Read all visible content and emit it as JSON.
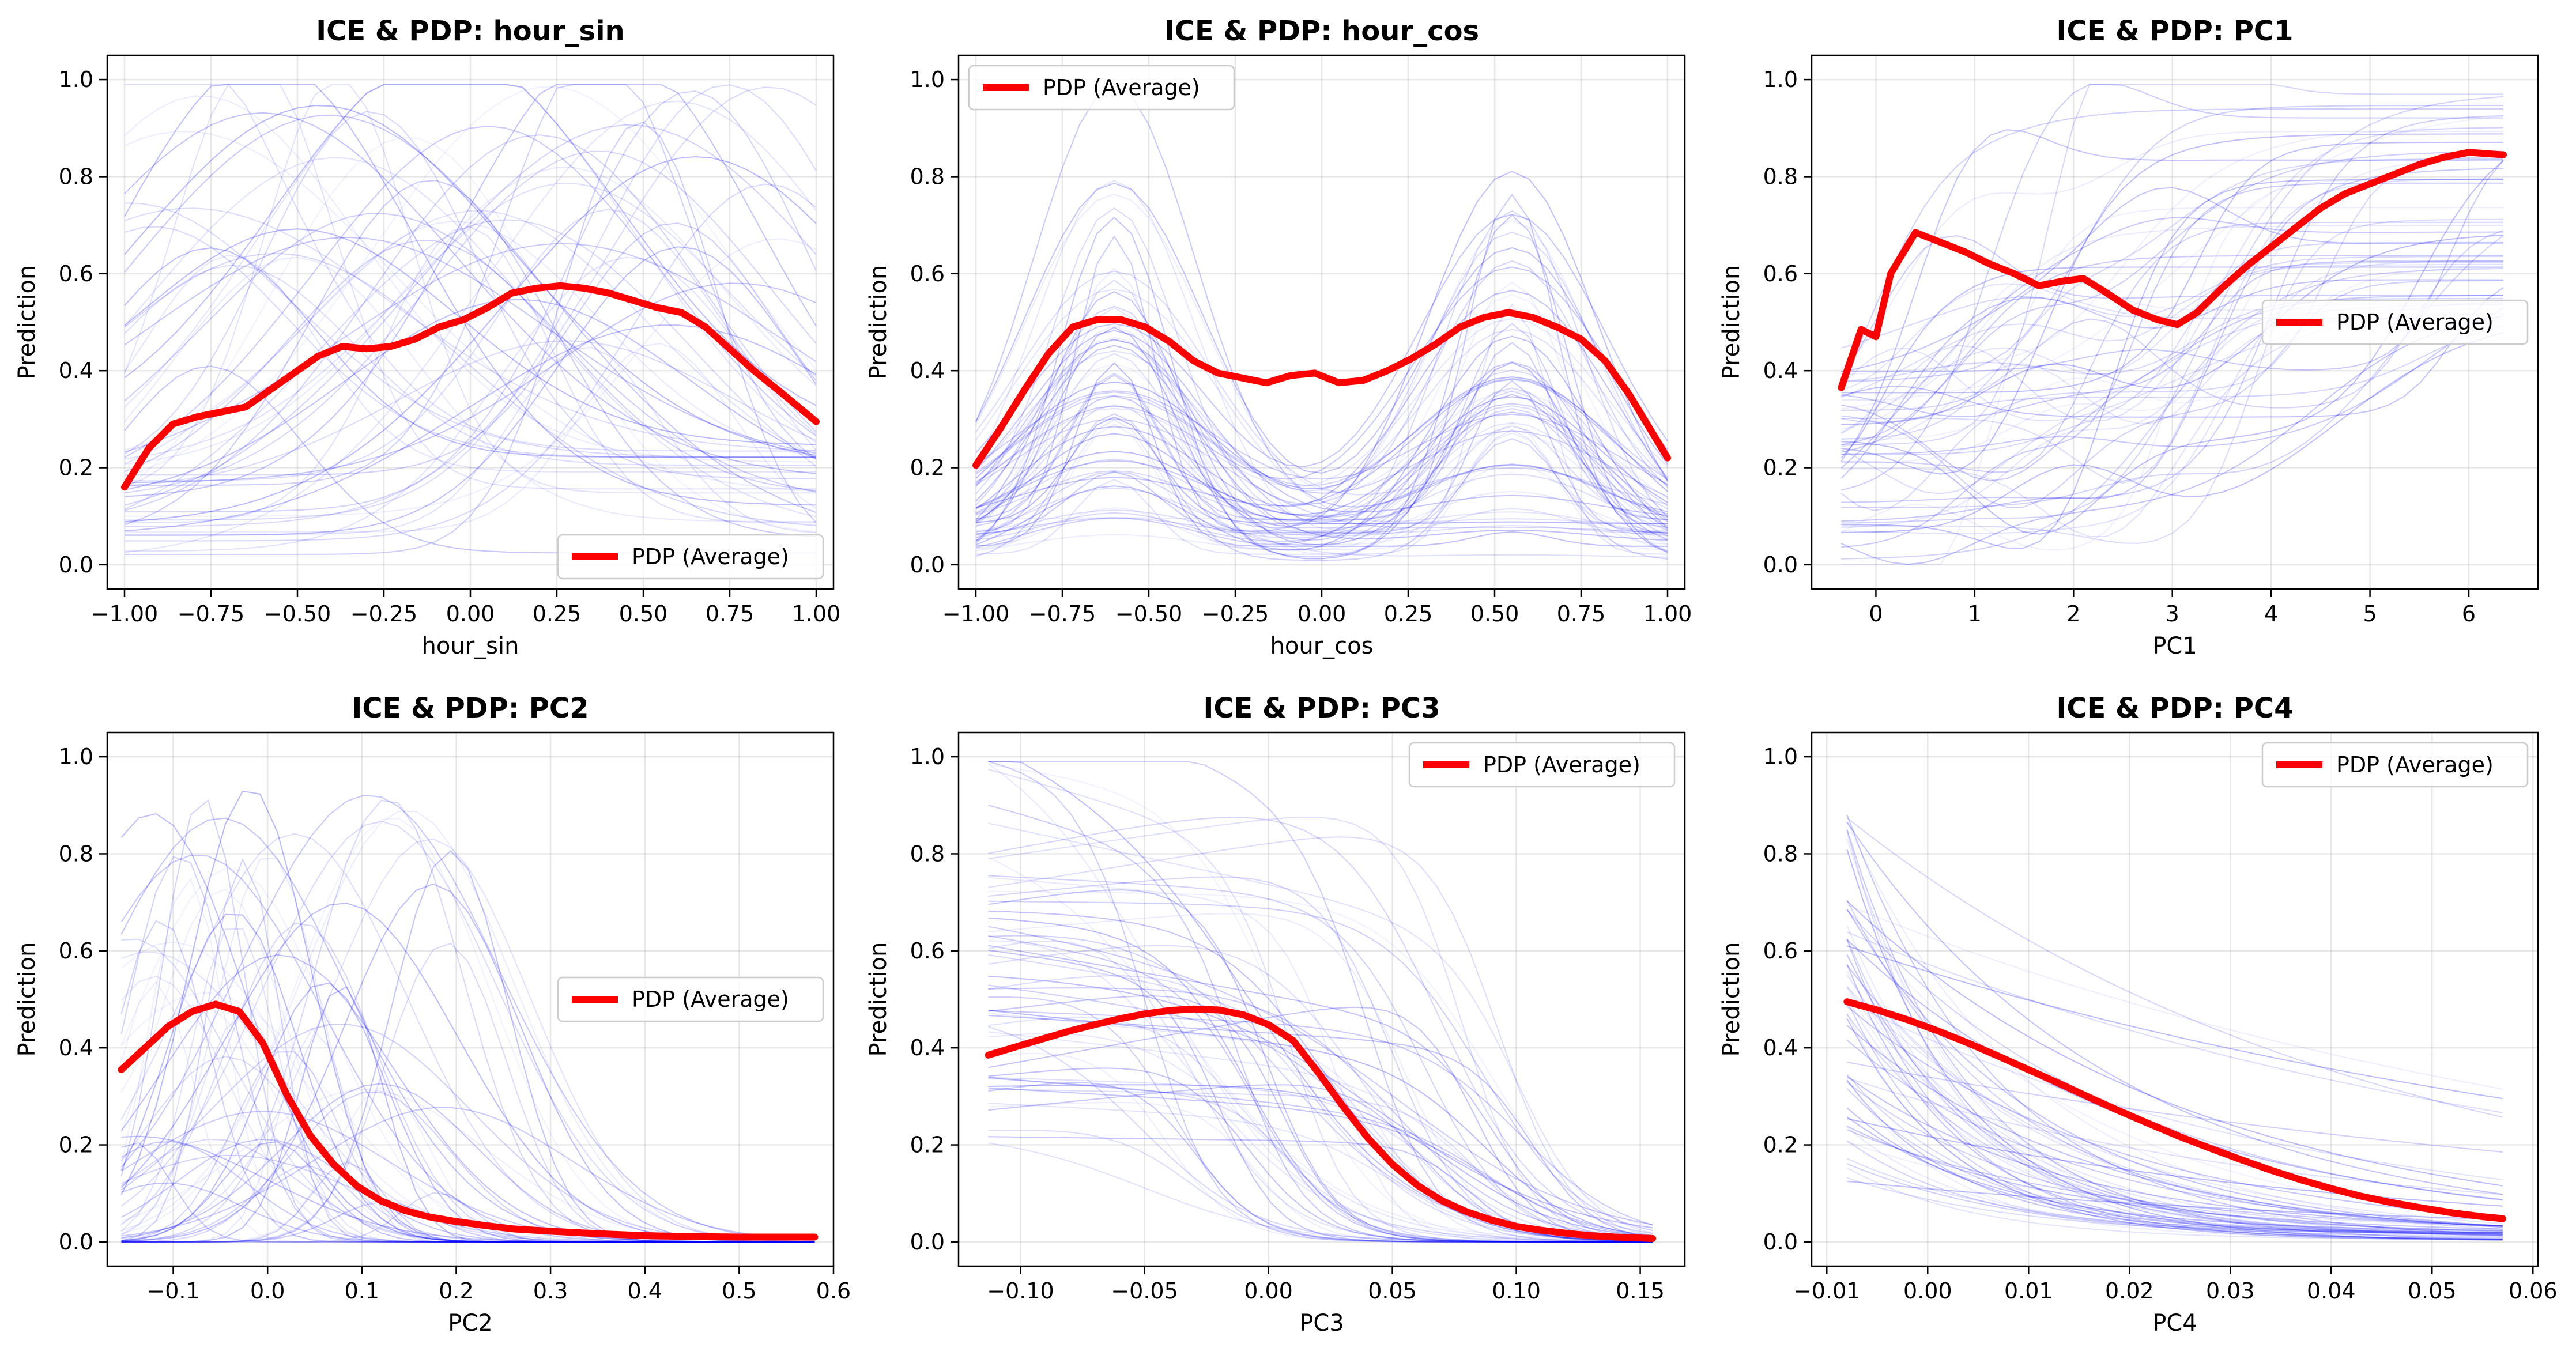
{
  "chart_data": [
    {
      "type": "line",
      "title": "ICE & PDP: hour_sin",
      "xlabel": "hour_sin",
      "ylabel": "Prediction",
      "xlim": [
        -1.05,
        1.05
      ],
      "ylim": [
        -0.05,
        1.05
      ],
      "xticks": [
        -1.0,
        -0.75,
        -0.5,
        -0.25,
        0.0,
        0.25,
        0.5,
        0.75,
        1.0
      ],
      "xtick_labels": [
        "−1.00",
        "−0.75",
        "−0.50",
        "−0.25",
        "0.00",
        "0.25",
        "0.50",
        "0.75",
        "1.00"
      ],
      "yticks": [
        0.0,
        0.2,
        0.4,
        0.6,
        0.8,
        1.0
      ],
      "ytick_labels": [
        "0.0",
        "0.2",
        "0.4",
        "0.6",
        "0.8",
        "1.0"
      ],
      "grid": true,
      "legend": {
        "label": "PDP (Average)",
        "position": "lower-right"
      },
      "ice_style": {
        "shape": "bump",
        "ice_count": 60,
        "ice_color": "#0000ff"
      },
      "pdp_color": "#ff0000",
      "series": [
        {
          "name": "PDP (Average)",
          "x": [
            -1.0,
            -0.93,
            -0.86,
            -0.79,
            -0.72,
            -0.65,
            -0.58,
            -0.51,
            -0.44,
            -0.37,
            -0.3,
            -0.23,
            -0.16,
            -0.09,
            -0.02,
            0.05,
            0.12,
            0.19,
            0.26,
            0.33,
            0.4,
            0.47,
            0.54,
            0.61,
            0.68,
            0.75,
            0.82,
            0.89,
            1.0
          ],
          "y": [
            0.16,
            0.24,
            0.29,
            0.305,
            0.315,
            0.325,
            0.36,
            0.395,
            0.43,
            0.45,
            0.445,
            0.45,
            0.465,
            0.49,
            0.505,
            0.53,
            0.56,
            0.57,
            0.575,
            0.57,
            0.56,
            0.545,
            0.53,
            0.52,
            0.49,
            0.445,
            0.4,
            0.36,
            0.295
          ]
        }
      ]
    },
    {
      "type": "line",
      "title": "ICE & PDP: hour_cos",
      "xlabel": "hour_cos",
      "ylabel": "Prediction",
      "xlim": [
        -1.05,
        1.05
      ],
      "ylim": [
        -0.05,
        1.05
      ],
      "xticks": [
        -1.0,
        -0.75,
        -0.5,
        -0.25,
        0.0,
        0.25,
        0.5,
        0.75,
        1.0
      ],
      "xtick_labels": [
        "−1.00",
        "−0.75",
        "−0.50",
        "−0.25",
        "0.00",
        "0.25",
        "0.50",
        "0.75",
        "1.00"
      ],
      "yticks": [
        0.0,
        0.2,
        0.4,
        0.6,
        0.8,
        1.0
      ],
      "ytick_labels": [
        "0.0",
        "0.2",
        "0.4",
        "0.6",
        "0.8",
        "1.0"
      ],
      "grid": true,
      "legend": {
        "label": "PDP (Average)",
        "position": "upper-left"
      },
      "ice_style": {
        "shape": "double",
        "ice_count": 60,
        "ice_color": "#0000ff"
      },
      "pdp_color": "#ff0000",
      "series": [
        {
          "name": "PDP (Average)",
          "x": [
            -1.0,
            -0.93,
            -0.86,
            -0.79,
            -0.72,
            -0.65,
            -0.58,
            -0.51,
            -0.44,
            -0.37,
            -0.3,
            -0.23,
            -0.16,
            -0.09,
            -0.02,
            0.05,
            0.12,
            0.19,
            0.26,
            0.33,
            0.4,
            0.47,
            0.54,
            0.61,
            0.68,
            0.75,
            0.82,
            0.89,
            1.0
          ],
          "y": [
            0.205,
            0.28,
            0.36,
            0.435,
            0.49,
            0.505,
            0.505,
            0.49,
            0.46,
            0.42,
            0.395,
            0.385,
            0.375,
            0.39,
            0.395,
            0.375,
            0.38,
            0.4,
            0.425,
            0.455,
            0.49,
            0.51,
            0.52,
            0.51,
            0.49,
            0.465,
            0.42,
            0.35,
            0.22
          ]
        }
      ]
    },
    {
      "type": "line",
      "title": "ICE & PDP: PC1",
      "xlabel": "PC1",
      "ylabel": "Prediction",
      "xlim": [
        -0.65,
        6.7
      ],
      "ylim": [
        -0.05,
        1.05
      ],
      "xticks": [
        0,
        1,
        2,
        3,
        4,
        5,
        6
      ],
      "xtick_labels": [
        "0",
        "1",
        "2",
        "3",
        "4",
        "5",
        "6"
      ],
      "yticks": [
        0.0,
        0.2,
        0.4,
        0.6,
        0.8,
        1.0
      ],
      "ytick_labels": [
        "0.0",
        "0.2",
        "0.4",
        "0.6",
        "0.8",
        "1.0"
      ],
      "grid": true,
      "legend": {
        "label": "PDP (Average)",
        "position": "center-right"
      },
      "ice_style": {
        "shape": "pc1",
        "ice_count": 60,
        "ice_color": "#0000ff"
      },
      "pdp_color": "#ff0000",
      "series": [
        {
          "name": "PDP (Average)",
          "x": [
            -0.35,
            -0.15,
            0.0,
            0.15,
            0.4,
            0.65,
            0.9,
            1.15,
            1.4,
            1.65,
            1.9,
            2.1,
            2.3,
            2.6,
            2.85,
            3.05,
            3.25,
            3.5,
            3.75,
            4.0,
            4.25,
            4.5,
            4.75,
            5.0,
            5.25,
            5.5,
            5.75,
            6.0,
            6.35
          ],
          "y": [
            0.365,
            0.485,
            0.47,
            0.6,
            0.685,
            0.665,
            0.645,
            0.62,
            0.6,
            0.575,
            0.585,
            0.59,
            0.565,
            0.525,
            0.505,
            0.495,
            0.52,
            0.57,
            0.615,
            0.655,
            0.695,
            0.735,
            0.765,
            0.785,
            0.805,
            0.825,
            0.84,
            0.85,
            0.845
          ]
        }
      ]
    },
    {
      "type": "line",
      "title": "ICE & PDP: PC2",
      "xlabel": "PC2",
      "ylabel": "Prediction",
      "xlim": [
        -0.17,
        0.6
      ],
      "ylim": [
        -0.05,
        1.05
      ],
      "xticks": [
        -0.1,
        0.0,
        0.1,
        0.2,
        0.3,
        0.4,
        0.5,
        0.6
      ],
      "xtick_labels": [
        "−0.1",
        "0.0",
        "0.1",
        "0.2",
        "0.3",
        "0.4",
        "0.5",
        "0.6"
      ],
      "yticks": [
        0.0,
        0.2,
        0.4,
        0.6,
        0.8,
        1.0
      ],
      "ytick_labels": [
        "0.0",
        "0.2",
        "0.4",
        "0.6",
        "0.8",
        "1.0"
      ],
      "grid": true,
      "legend": {
        "label": "PDP (Average)",
        "position": "center-right"
      },
      "ice_style": {
        "shape": "pc2",
        "ice_count": 60,
        "ice_color": "#0000ff"
      },
      "pdp_color": "#ff0000",
      "series": [
        {
          "name": "PDP (Average)",
          "x": [
            -0.155,
            -0.13,
            -0.105,
            -0.08,
            -0.055,
            -0.03,
            -0.005,
            0.02,
            0.045,
            0.07,
            0.095,
            0.12,
            0.145,
            0.17,
            0.2,
            0.23,
            0.26,
            0.3,
            0.35,
            0.4,
            0.45,
            0.5,
            0.58
          ],
          "y": [
            0.355,
            0.4,
            0.445,
            0.475,
            0.49,
            0.475,
            0.41,
            0.305,
            0.22,
            0.16,
            0.115,
            0.085,
            0.065,
            0.052,
            0.042,
            0.034,
            0.027,
            0.022,
            0.017,
            0.013,
            0.011,
            0.01,
            0.01
          ]
        }
      ]
    },
    {
      "type": "line",
      "title": "ICE & PDP: PC3",
      "xlabel": "PC3",
      "ylabel": "Prediction",
      "xlim": [
        -0.125,
        0.168
      ],
      "ylim": [
        -0.05,
        1.05
      ],
      "xticks": [
        -0.1,
        -0.05,
        0.0,
        0.05,
        0.1,
        0.15
      ],
      "xtick_labels": [
        "−0.10",
        "−0.05",
        "0.00",
        "0.05",
        "0.10",
        "0.15"
      ],
      "yticks": [
        0.0,
        0.2,
        0.4,
        0.6,
        0.8,
        1.0
      ],
      "ytick_labels": [
        "0.0",
        "0.2",
        "0.4",
        "0.6",
        "0.8",
        "1.0"
      ],
      "grid": true,
      "legend": {
        "label": "PDP (Average)",
        "position": "upper-right"
      },
      "ice_style": {
        "shape": "pc3",
        "ice_count": 60,
        "ice_color": "#0000ff"
      },
      "pdp_color": "#ff0000",
      "series": [
        {
          "name": "PDP (Average)",
          "x": [
            -0.113,
            -0.1,
            -0.09,
            -0.08,
            -0.07,
            -0.06,
            -0.05,
            -0.04,
            -0.03,
            -0.02,
            -0.01,
            0.0,
            0.01,
            0.02,
            0.03,
            0.04,
            0.05,
            0.06,
            0.07,
            0.08,
            0.09,
            0.1,
            0.11,
            0.12,
            0.13,
            0.14,
            0.155
          ],
          "y": [
            0.385,
            0.405,
            0.42,
            0.435,
            0.448,
            0.46,
            0.47,
            0.477,
            0.48,
            0.478,
            0.468,
            0.448,
            0.415,
            0.35,
            0.28,
            0.215,
            0.16,
            0.117,
            0.085,
            0.062,
            0.045,
            0.032,
            0.024,
            0.018,
            0.013,
            0.01,
            0.007
          ]
        }
      ]
    },
    {
      "type": "line",
      "title": "ICE & PDP: PC4",
      "xlabel": "PC4",
      "ylabel": "Prediction",
      "xlim": [
        -0.0115,
        0.0605
      ],
      "ylim": [
        -0.05,
        1.05
      ],
      "xticks": [
        -0.01,
        0.0,
        0.01,
        0.02,
        0.03,
        0.04,
        0.05,
        0.06
      ],
      "xtick_labels": [
        "−0.01",
        "0.00",
        "0.01",
        "0.02",
        "0.03",
        "0.04",
        "0.05",
        "0.06"
      ],
      "yticks": [
        0.0,
        0.2,
        0.4,
        0.6,
        0.8,
        1.0
      ],
      "ytick_labels": [
        "0.0",
        "0.2",
        "0.4",
        "0.6",
        "0.8",
        "1.0"
      ],
      "grid": true,
      "legend": {
        "label": "PDP (Average)",
        "position": "upper-right"
      },
      "ice_style": {
        "shape": "pc4",
        "ice_count": 60,
        "ice_color": "#0000ff"
      },
      "pdp_color": "#ff0000",
      "series": [
        {
          "name": "PDP (Average)",
          "x": [
            -0.008,
            -0.005,
            -0.002,
            0.001,
            0.004,
            0.007,
            0.01,
            0.013,
            0.016,
            0.019,
            0.022,
            0.025,
            0.028,
            0.031,
            0.034,
            0.037,
            0.04,
            0.043,
            0.046,
            0.049,
            0.052,
            0.055,
            0.057
          ],
          "y": [
            0.495,
            0.478,
            0.458,
            0.435,
            0.41,
            0.383,
            0.355,
            0.327,
            0.298,
            0.27,
            0.243,
            0.217,
            0.193,
            0.17,
            0.148,
            0.128,
            0.11,
            0.094,
            0.081,
            0.07,
            0.06,
            0.052,
            0.048
          ]
        }
      ]
    }
  ]
}
